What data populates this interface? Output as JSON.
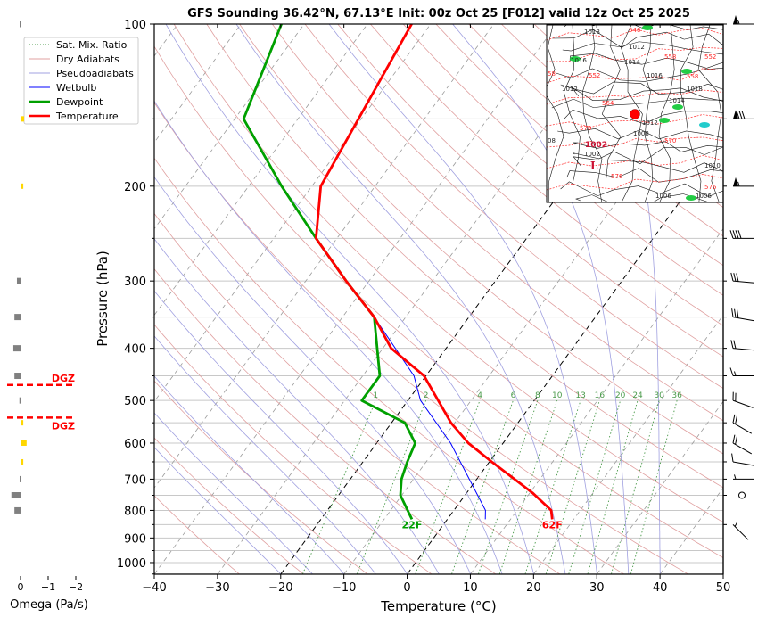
{
  "title": "GFS Sounding 36.42°N, 67.13°E Init: 00z Oct 25 [F012] valid 12z Oct 25 2025",
  "legend": {
    "items": [
      {
        "label": "Sat. Mix. Ratio",
        "color": "#4a9a4a",
        "style": "dotted"
      },
      {
        "label": "Dry Adiabats",
        "color": "#e0a0a0",
        "style": "solid"
      },
      {
        "label": "Pseudoadiabats",
        "color": "#a0a0e0",
        "style": "solid"
      },
      {
        "label": "Wetbulb",
        "color": "#0000ff",
        "style": "solid"
      },
      {
        "label": "Dewpoint",
        "color": "#00a000",
        "style": "thick"
      },
      {
        "label": "Temperature",
        "color": "#ff0000",
        "style": "thick"
      }
    ]
  },
  "omega_panel": {
    "xlabel": "Omega (Pa/s)",
    "ticks": [
      "0",
      "−1",
      "−2"
    ],
    "dgz_label": "DGZ",
    "bars": [
      {
        "p": 100,
        "omega": 0.03
      },
      {
        "p": 150,
        "omega": -0.13
      },
      {
        "p": 200,
        "omega": -0.1
      },
      {
        "p": 300,
        "omega": 0.13
      },
      {
        "p": 350,
        "omega": 0.22
      },
      {
        "p": 400,
        "omega": 0.26
      },
      {
        "p": 450,
        "omega": 0.22
      },
      {
        "p": 500,
        "omega": 0.04
      },
      {
        "p": 550,
        "omega": -0.1
      },
      {
        "p": 600,
        "omega": -0.22
      },
      {
        "p": 650,
        "omega": -0.1
      },
      {
        "p": 700,
        "omega": 0.03
      },
      {
        "p": 750,
        "omega": 0.33
      },
      {
        "p": 800,
        "omega": 0.22
      }
    ],
    "dgz_pressures": [
      468,
      538
    ],
    "colors": {
      "rising": "#ffd700",
      "sinking": "#808080",
      "dgz": "#ff0000"
    }
  },
  "chart_data": {
    "type": "line",
    "title": "GFS Sounding 36.42°N, 67.13°E Init: 00z Oct 25 [F012] valid 12z Oct 25 2025",
    "xlabel": "Temperature (°C)",
    "ylabel": "Pressure (hPa)",
    "xlim": [
      -40,
      50
    ],
    "ylim": [
      1050,
      100
    ],
    "y_scale": "log",
    "x_ticks": [
      "−40",
      "−30",
      "−20",
      "−10",
      "0",
      "10",
      "20",
      "30",
      "40",
      "50"
    ],
    "x_tick_values": [
      -40,
      -30,
      -20,
      -10,
      0,
      10,
      20,
      30,
      40,
      50
    ],
    "y_ticks": [
      "100",
      "200",
      "300",
      "400",
      "500",
      "600",
      "700",
      "800",
      "900",
      "1000"
    ],
    "y_tick_values": [
      100,
      200,
      300,
      400,
      500,
      600,
      700,
      800,
      900,
      1000
    ],
    "grid": true,
    "highlighted_isotherms": [
      -20,
      0
    ],
    "mixing_ratio_labels": [
      "1",
      "2",
      "4",
      "6",
      "8",
      "10",
      "13",
      "16",
      "20",
      "24",
      "30",
      "36"
    ],
    "mixing_ratio_values": [
      1,
      2,
      4,
      6,
      8,
      10,
      13,
      16,
      20,
      24,
      30,
      36
    ],
    "series": [
      {
        "name": "Temperature",
        "color": "#ff0000",
        "points": [
          {
            "p": 831,
            "t": 16.6
          },
          {
            "p": 800,
            "t": 15.4
          },
          {
            "p": 742,
            "t": 10.4
          },
          {
            "p": 652,
            "t": 0.6
          },
          {
            "p": 600,
            "t": -5.5
          },
          {
            "p": 550,
            "t": -10.6
          },
          {
            "p": 500,
            "t": -15.2
          },
          {
            "p": 450,
            "t": -20.3
          },
          {
            "p": 400,
            "t": -28.7
          },
          {
            "p": 350,
            "t": -35.0
          },
          {
            "p": 300,
            "t": -43.6
          },
          {
            "p": 250,
            "t": -53.3
          },
          {
            "p": 200,
            "t": -58.6
          },
          {
            "p": 100,
            "t": -63.0
          }
        ]
      },
      {
        "name": "Dewpoint",
        "color": "#00a000",
        "points": [
          {
            "p": 831,
            "t": -5.6
          },
          {
            "p": 750,
            "t": -10.2
          },
          {
            "p": 700,
            "t": -11.9
          },
          {
            "p": 650,
            "t": -13.0
          },
          {
            "p": 600,
            "t": -13.9
          },
          {
            "p": 550,
            "t": -17.9
          },
          {
            "p": 500,
            "t": -27.3
          },
          {
            "p": 450,
            "t": -27.3
          },
          {
            "p": 350,
            "t": -35.0
          },
          {
            "p": 300,
            "t": -43.6
          },
          {
            "p": 250,
            "t": -53.3
          },
          {
            "p": 200,
            "t": -64.8
          },
          {
            "p": 150,
            "t": -78.6
          },
          {
            "p": 100,
            "t": -83.6
          }
        ]
      },
      {
        "name": "Wetbulb",
        "color": "#0000ff",
        "points": [
          {
            "p": 831,
            "t": 6.0
          },
          {
            "p": 800,
            "t": 5.0
          },
          {
            "p": 600,
            "t": -8.3
          },
          {
            "p": 500,
            "t": -18.0
          },
          {
            "p": 450,
            "t": -21.9
          },
          {
            "p": 350,
            "t": -35.0
          },
          {
            "p": 300,
            "t": -43.6
          },
          {
            "p": 250,
            "t": -53.3
          },
          {
            "p": 200,
            "t": -58.6
          },
          {
            "p": 100,
            "t": -63.0
          }
        ]
      }
    ],
    "surface_labels": {
      "dewpoint": "22F",
      "temperature": "62F"
    },
    "wind_barbs": [
      {
        "p": 100,
        "speed_kt": 55,
        "dir_deg": 270
      },
      {
        "p": 150,
        "speed_kt": 80,
        "dir_deg": 270
      },
      {
        "p": 200,
        "speed_kt": 55,
        "dir_deg": 270
      },
      {
        "p": 250,
        "speed_kt": 40,
        "dir_deg": 270
      },
      {
        "p": 300,
        "speed_kt": 30,
        "dir_deg": 265
      },
      {
        "p": 350,
        "speed_kt": 30,
        "dir_deg": 260
      },
      {
        "p": 400,
        "speed_kt": 20,
        "dir_deg": 265
      },
      {
        "p": 450,
        "speed_kt": 15,
        "dir_deg": 270
      },
      {
        "p": 500,
        "speed_kt": 20,
        "dir_deg": 250
      },
      {
        "p": 550,
        "speed_kt": 20,
        "dir_deg": 240
      },
      {
        "p": 600,
        "speed_kt": 20,
        "dir_deg": 240
      },
      {
        "p": 650,
        "speed_kt": 10,
        "dir_deg": 260
      },
      {
        "p": 700,
        "speed_kt": 5,
        "dir_deg": 270
      },
      {
        "p": 750,
        "speed_kt": 0,
        "dir_deg": 0
      },
      {
        "p": 850,
        "speed_kt": 5,
        "dir_deg": 225
      }
    ]
  },
  "inset_map": {
    "isobar_labels": [
      "1018",
      "1012",
      "1016",
      "1014",
      "1012",
      "1018",
      "1016",
      "1014",
      "1012",
      "1008",
      "1006",
      "1002",
      "1010",
      "1006",
      "08"
    ],
    "height_labels": [
      "546",
      "552",
      "558",
      "552",
      "564",
      "58",
      "570",
      "570",
      "576",
      "576",
      "558"
    ],
    "low_label": "L",
    "low_value": "1002"
  }
}
